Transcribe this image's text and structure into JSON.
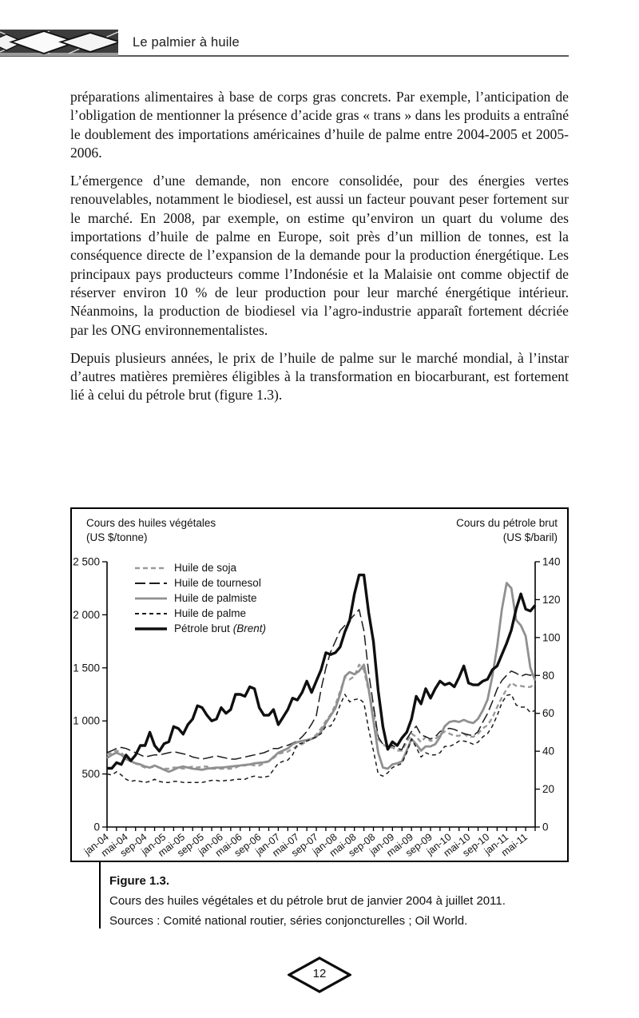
{
  "header": {
    "title": "Le palmier à huile"
  },
  "paragraphs": [
    "préparations alimentaires à base de corps gras concrets. Par exemple, l’anticipation de l’obligation de mentionner la présence d’acide gras « trans » dans les produits a entraîné le doublement des importations américaines d’huile de palme entre 2004-2005 et 2005-2006.",
    "L’émergence d’une demande, non encore consolidée, pour des énergies vertes renouvelables, notamment le biodiesel, est aussi un facteur pouvant peser fortement sur le marché. En 2008, par exemple, on estime qu’environ un quart du volume des importations d’huile de palme en Europe, soit près d’un million de tonnes, est la conséquence directe de l’expansion de la demande pour la production énergétique. Les principaux pays producteurs comme l’Indonésie et la Malaisie ont comme objectif de réserver environ 10 % de leur production pour leur marché énergétique intérieur. Néanmoins, la production de biodiesel via l’agro-industrie apparaît fortement décriée par les ONG environnementalistes.",
    "Depuis plusieurs années, le prix de l’huile de palme sur le marché mondial, à l’instar d’autres matières premières éligibles à la transformation en biocarburant, est fortement lié à celui du pétrole brut (figure 1.3)."
  ],
  "figure_caption": {
    "number": "Figure 1.3.",
    "line1": "Cours des huiles végétales et du pétrole brut de janvier 2004 à juillet 2011.",
    "line2": "Sources : Comité national routier, séries conjoncturelles ; Oil World."
  },
  "page_number": "12",
  "chart_data": {
    "type": "line",
    "x_start": "jan-04",
    "x_end": "jul-11",
    "x_frequency": "monthly",
    "left_axis": {
      "title_line1": "Cours des huiles végétales",
      "title_line2": "(US $/tonne)",
      "max": 2500,
      "ticks": [
        {
          "value": 0,
          "label": "0"
        },
        {
          "value": 500,
          "label": "500"
        },
        {
          "value": 1000,
          "label": "1 000"
        },
        {
          "value": 1500,
          "label": "1 500"
        },
        {
          "value": 2000,
          "label": "2 000"
        },
        {
          "value": 2500,
          "label": "2 500"
        }
      ]
    },
    "right_axis": {
      "title_line1": "Cours du pétrole brut",
      "title_line2": "(US $/baril)",
      "max": 140,
      "ticks": [
        {
          "value": 0,
          "label": "0"
        },
        {
          "value": 20,
          "label": "20"
        },
        {
          "value": 40,
          "label": "40"
        },
        {
          "value": 60,
          "label": "60"
        },
        {
          "value": 80,
          "label": "80"
        },
        {
          "value": 100,
          "label": "100"
        },
        {
          "value": 120,
          "label": "120"
        },
        {
          "value": 140,
          "label": "140"
        }
      ]
    },
    "x_ticks": [
      "jan-04",
      "mai-04",
      "sep-04",
      "jan-05",
      "mai-05",
      "sep-05",
      "jan-06",
      "mai-06",
      "sep-06",
      "jan-07",
      "mai-07",
      "sep-07",
      "jan-08",
      "mai-08",
      "sep-08",
      "jan-09",
      "mai-09",
      "sep-09",
      "jan-10",
      "mai-10",
      "sep-10",
      "jan-11",
      "mai-11"
    ],
    "series": [
      {
        "name": "Huile de soja",
        "axis": "left",
        "color": "#9a9a9a",
        "dash": "6 4",
        "width": 2.4,
        "values": [
          680,
          700,
          720,
          700,
          650,
          620,
          600,
          580,
          560,
          560,
          570,
          560,
          550,
          550,
          560,
          560,
          550,
          560,
          570,
          560,
          570,
          570,
          550,
          550,
          550,
          550,
          550,
          560,
          580,
          580,
          590,
          580,
          580,
          600,
          620,
          650,
          690,
          700,
          710,
          740,
          760,
          780,
          810,
          830,
          870,
          930,
          1000,
          1060,
          1150,
          1280,
          1410,
          1390,
          1420,
          1530,
          1480,
          1280,
          1080,
          830,
          780,
          750,
          750,
          720,
          720,
          800,
          880,
          850,
          800,
          850,
          810,
          830,
          870,
          900,
          880,
          860,
          860,
          880,
          850,
          850,
          880,
          930,
          960,
          1030,
          1130,
          1220,
          1300,
          1360,
          1330,
          1330,
          1320,
          1320,
          1350
        ]
      },
      {
        "name": "Huile de tournesol",
        "axis": "left",
        "color": "#1c1c1c",
        "dash": "13 5",
        "width": 1.5,
        "values": [
          700,
          720,
          740,
          750,
          740,
          720,
          700,
          680,
          660,
          670,
          680,
          680,
          690,
          700,
          710,
          700,
          690,
          680,
          660,
          650,
          640,
          650,
          660,
          670,
          660,
          650,
          640,
          640,
          650,
          660,
          670,
          680,
          690,
          700,
          720,
          740,
          740,
          760,
          770,
          790,
          810,
          850,
          900,
          970,
          1050,
          1300,
          1500,
          1650,
          1750,
          1850,
          1900,
          1950,
          2000,
          2050,
          1850,
          1450,
          1150,
          850,
          780,
          750,
          770,
          740,
          730,
          830,
          900,
          950,
          870,
          850,
          830,
          850,
          900,
          920,
          930,
          920,
          900,
          880,
          870,
          860,
          900,
          990,
          1070,
          1180,
          1300,
          1380,
          1430,
          1470,
          1450,
          1420,
          1440,
          1430,
          1450
        ]
      },
      {
        "name": "Huile de palmiste",
        "axis": "left",
        "color": "#8d918f",
        "dash": "",
        "width": 2.8,
        "values": [
          650,
          680,
          700,
          680,
          640,
          620,
          600,
          590,
          570,
          560,
          580,
          560,
          540,
          520,
          540,
          560,
          570,
          560,
          550,
          545,
          540,
          550,
          555,
          560,
          560,
          565,
          570,
          575,
          580,
          585,
          590,
          600,
          605,
          610,
          620,
          660,
          700,
          720,
          740,
          780,
          800,
          810,
          820,
          830,
          850,
          900,
          980,
          1050,
          1120,
          1250,
          1420,
          1460,
          1440,
          1470,
          1530,
          1300,
          1000,
          700,
          560,
          550,
          590,
          600,
          620,
          720,
          830,
          780,
          720,
          760,
          760,
          780,
          850,
          950,
          990,
          1000,
          990,
          1010,
          990,
          980,
          1020,
          1100,
          1200,
          1420,
          1700,
          2050,
          2300,
          2250,
          1950,
          1900,
          1800,
          1500,
          1380
        ]
      },
      {
        "name": "Huile de palme",
        "axis": "left",
        "color": "#1c1c1c",
        "dash": "5 4",
        "width": 1.5,
        "values": [
          500,
          490,
          520,
          490,
          450,
          430,
          440,
          430,
          420,
          430,
          450,
          430,
          420,
          420,
          430,
          430,
          420,
          420,
          420,
          420,
          420,
          430,
          440,
          440,
          430,
          440,
          440,
          450,
          450,
          450,
          470,
          480,
          470,
          470,
          480,
          540,
          600,
          620,
          630,
          680,
          780,
          790,
          810,
          830,
          850,
          880,
          950,
          950,
          1030,
          1150,
          1250,
          1180,
          1200,
          1210,
          1170,
          920,
          720,
          500,
          480,
          510,
          560,
          580,
          600,
          700,
          830,
          750,
          660,
          700,
          680,
          680,
          700,
          760,
          760,
          780,
          810,
          810,
          800,
          780,
          800,
          850,
          880,
          950,
          1050,
          1170,
          1240,
          1250,
          1150,
          1130,
          1130,
          1080,
          1100
        ]
      },
      {
        "name": "Pétrole brut",
        "name_suffix_italic": "(Brent)",
        "axis": "right",
        "color": "#0f0f0f",
        "dash": "",
        "width": 3.4,
        "values": [
          31,
          31,
          34,
          33,
          38,
          35,
          38,
          43,
          43,
          50,
          43,
          40,
          44,
          45,
          53,
          52,
          49,
          54,
          57,
          64,
          63,
          59,
          56,
          57,
          63,
          60,
          62,
          70,
          70,
          69,
          74,
          73,
          63,
          59,
          59,
          62,
          54,
          58,
          62,
          68,
          67,
          71,
          77,
          71,
          77,
          83,
          92,
          91,
          92,
          95,
          103,
          109,
          123,
          133,
          133,
          113,
          98,
          72,
          53,
          41,
          45,
          43,
          47,
          50,
          57,
          69,
          65,
          73,
          68,
          73,
          77,
          75,
          76,
          74,
          79,
          85,
          76,
          75,
          75,
          77,
          78,
          83,
          85,
          91,
          97,
          104,
          115,
          123,
          115,
          114,
          117
        ]
      }
    ]
  }
}
